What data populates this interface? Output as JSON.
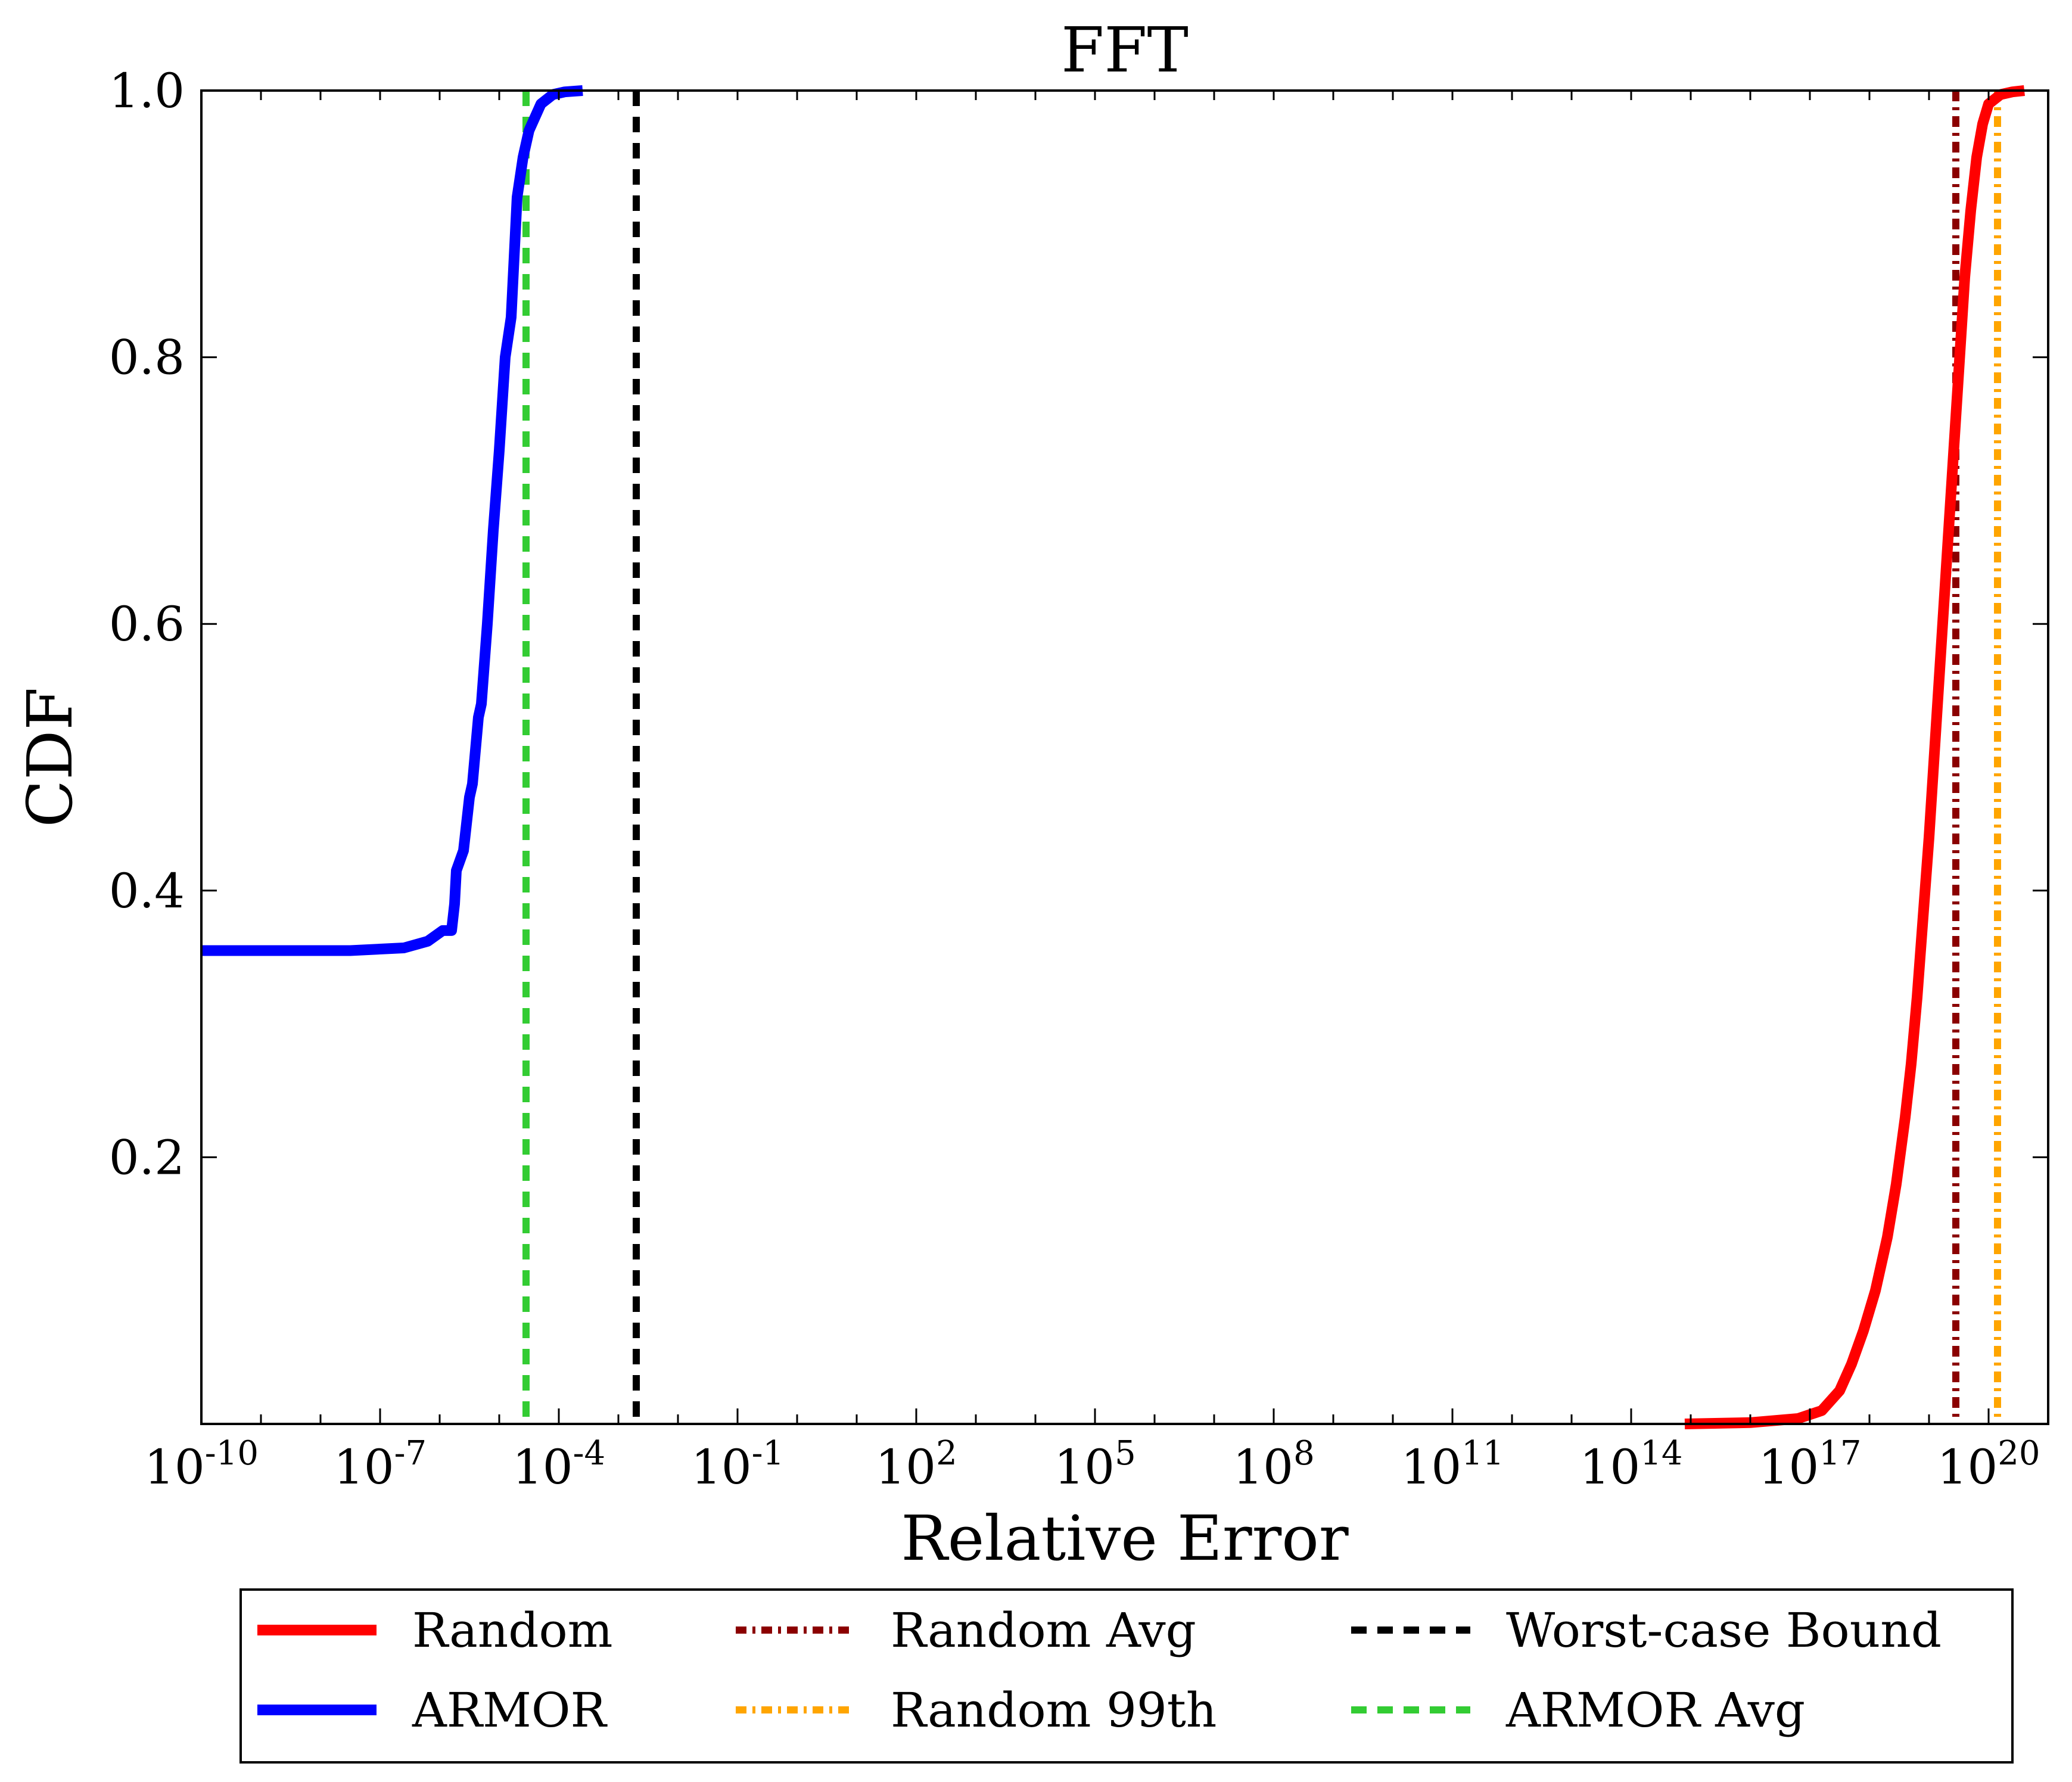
{
  "chart_data": {
    "type": "line",
    "title": "FFT",
    "xlabel": "Relative Error",
    "ylabel": "CDF",
    "xscale": "log",
    "xlim_exponent": [
      -10,
      21
    ],
    "ylim": [
      0,
      1.0
    ],
    "xticks": [
      {
        "exp": -10,
        "base": "10",
        "sup": "-10"
      },
      {
        "exp": -7,
        "base": "10",
        "sup": "-7"
      },
      {
        "exp": -4,
        "base": "10",
        "sup": "-4"
      },
      {
        "exp": -1,
        "base": "10",
        "sup": "-1"
      },
      {
        "exp": 2,
        "base": "10",
        "sup": "2"
      },
      {
        "exp": 5,
        "base": "10",
        "sup": "5"
      },
      {
        "exp": 8,
        "base": "10",
        "sup": "8"
      },
      {
        "exp": 11,
        "base": "10",
        "sup": "11"
      },
      {
        "exp": 14,
        "base": "10",
        "sup": "14"
      },
      {
        "exp": 17,
        "base": "10",
        "sup": "17"
      },
      {
        "exp": 20,
        "base": "10",
        "sup": "20"
      }
    ],
    "yticks": [
      {
        "value": 0.2,
        "label": "0.2"
      },
      {
        "value": 0.4,
        "label": "0.4"
      },
      {
        "value": 0.6,
        "label": "0.6"
      },
      {
        "value": 0.8,
        "label": "0.8"
      },
      {
        "value": 1.0,
        "label": "1.0"
      }
    ],
    "grid": false,
    "legend_placement": "below",
    "series": [
      {
        "name": "Random",
        "color": "#ff0000",
        "style": "solid",
        "x_log10": [
          14.9,
          16.0,
          16.8,
          17.2,
          17.5,
          17.7,
          17.9,
          18.1,
          18.3,
          18.45,
          18.6,
          18.7,
          18.8,
          18.9,
          19.0,
          19.1,
          19.2,
          19.3,
          19.4,
          19.5,
          19.6,
          19.7,
          19.8,
          19.9,
          20.0,
          20.2,
          20.4,
          20.6
        ],
        "y": [
          0.0,
          0.001,
          0.004,
          0.01,
          0.025,
          0.045,
          0.07,
          0.1,
          0.14,
          0.18,
          0.23,
          0.27,
          0.32,
          0.38,
          0.44,
          0.51,
          0.58,
          0.65,
          0.72,
          0.79,
          0.86,
          0.91,
          0.95,
          0.975,
          0.99,
          0.997,
          0.999,
          1.0
        ]
      },
      {
        "name": "ARMOR",
        "color": "#0000ff",
        "style": "solid",
        "x_log10": [
          -10.0,
          -7.5,
          -6.6,
          -6.2,
          -5.95,
          -5.8,
          -5.75,
          -5.72,
          -5.6,
          -5.5,
          -5.45,
          -5.35,
          -5.3,
          -5.2,
          -5.1,
          -5.0,
          -4.9,
          -4.8,
          -4.7,
          -4.6,
          -4.5,
          -4.3,
          -4.1,
          -3.9,
          -3.6
        ],
        "y": [
          0.355,
          0.355,
          0.357,
          0.362,
          0.37,
          0.37,
          0.39,
          0.415,
          0.43,
          0.47,
          0.48,
          0.53,
          0.54,
          0.6,
          0.67,
          0.73,
          0.8,
          0.83,
          0.92,
          0.95,
          0.97,
          0.99,
          0.997,
          0.999,
          1.0
        ]
      }
    ],
    "vlines": [
      {
        "name": "Random Avg",
        "x_log10": 19.45,
        "color": "#8b0000",
        "style": "dashdot"
      },
      {
        "name": "Random 99th",
        "x_log10": 20.15,
        "color": "#ffa500",
        "style": "dashdot"
      },
      {
        "name": "Worst-case Bound",
        "x_log10": -2.7,
        "color": "#000000",
        "style": "dashed"
      },
      {
        "name": "ARMOR Avg",
        "x_log10": -4.55,
        "color": "#33cc33",
        "style": "dashed"
      }
    ],
    "legend_order": [
      [
        "Random",
        "Random Avg",
        "Worst-case Bound"
      ],
      [
        "ARMOR",
        "Random 99th",
        "ARMOR Avg"
      ]
    ]
  }
}
